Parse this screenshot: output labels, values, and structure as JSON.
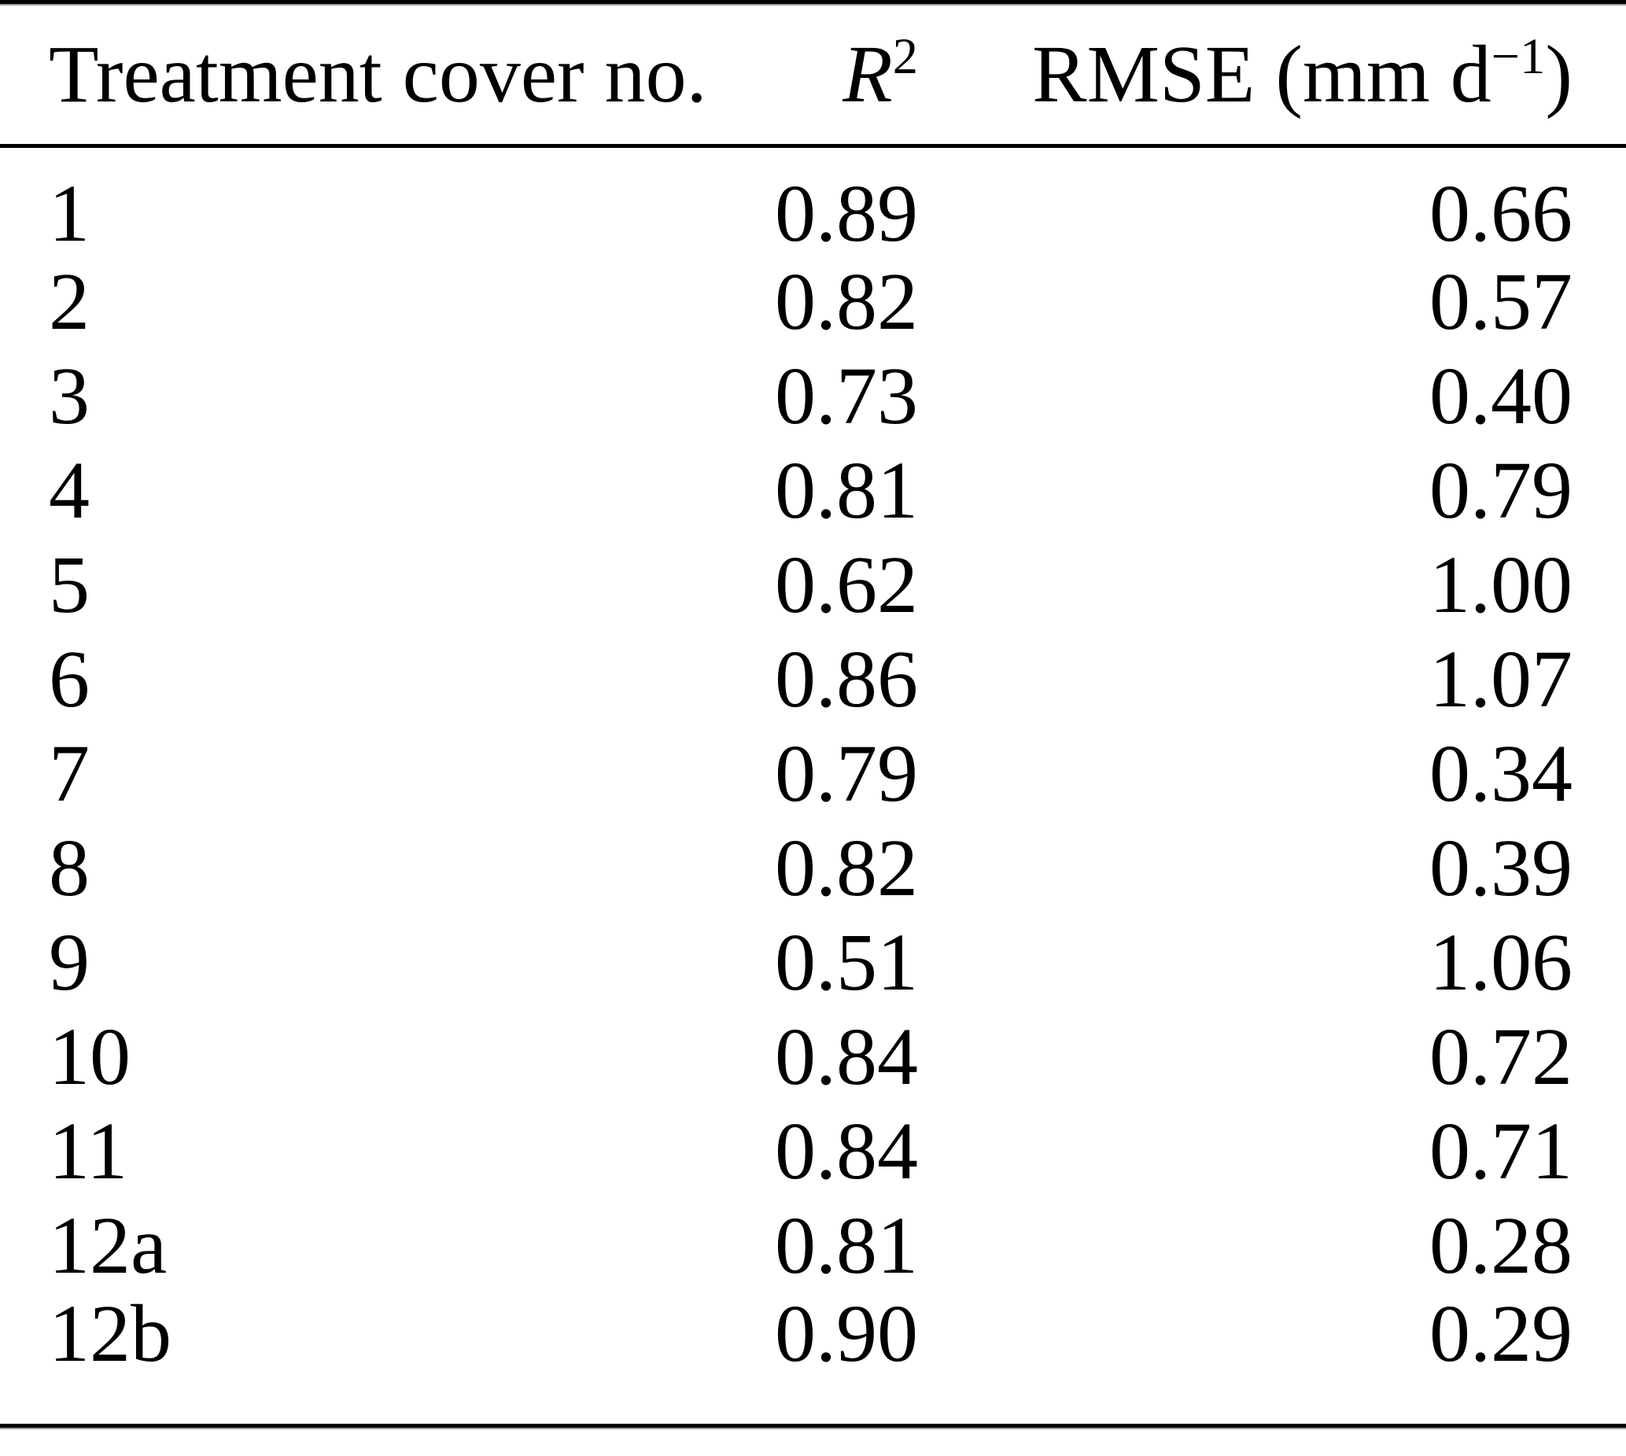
{
  "colors": {
    "text": "#000000",
    "background": "#ffffff",
    "rule": "#000000",
    "rule_shadow": "#9a9a9a"
  },
  "table": {
    "headers": {
      "treatment": "Treatment cover no.",
      "r2_base": "R",
      "r2_sup": "2",
      "rmse_prefix": "RMSE (mm d",
      "rmse_sup": "−1",
      "rmse_suffix": ")"
    },
    "rows": [
      {
        "treatment": "1",
        "r2": "0.89",
        "rmse": "0.66"
      },
      {
        "treatment": "2",
        "r2": "0.82",
        "rmse": "0.57"
      },
      {
        "treatment": "3",
        "r2": "0.73",
        "rmse": "0.40"
      },
      {
        "treatment": "4",
        "r2": "0.81",
        "rmse": "0.79"
      },
      {
        "treatment": "5",
        "r2": "0.62",
        "rmse": "1.00"
      },
      {
        "treatment": "6",
        "r2": "0.86",
        "rmse": "1.07"
      },
      {
        "treatment": "7",
        "r2": "0.79",
        "rmse": "0.34"
      },
      {
        "treatment": "8",
        "r2": "0.82",
        "rmse": "0.39"
      },
      {
        "treatment": "9",
        "r2": "0.51",
        "rmse": "1.06"
      },
      {
        "treatment": "10",
        "r2": "0.84",
        "rmse": "0.72"
      },
      {
        "treatment": "11",
        "r2": "0.84",
        "rmse": "0.71"
      },
      {
        "treatment": "12a",
        "r2": "0.81",
        "rmse": "0.28"
      },
      {
        "treatment": "12b",
        "r2": "0.90",
        "rmse": "0.29"
      }
    ]
  }
}
